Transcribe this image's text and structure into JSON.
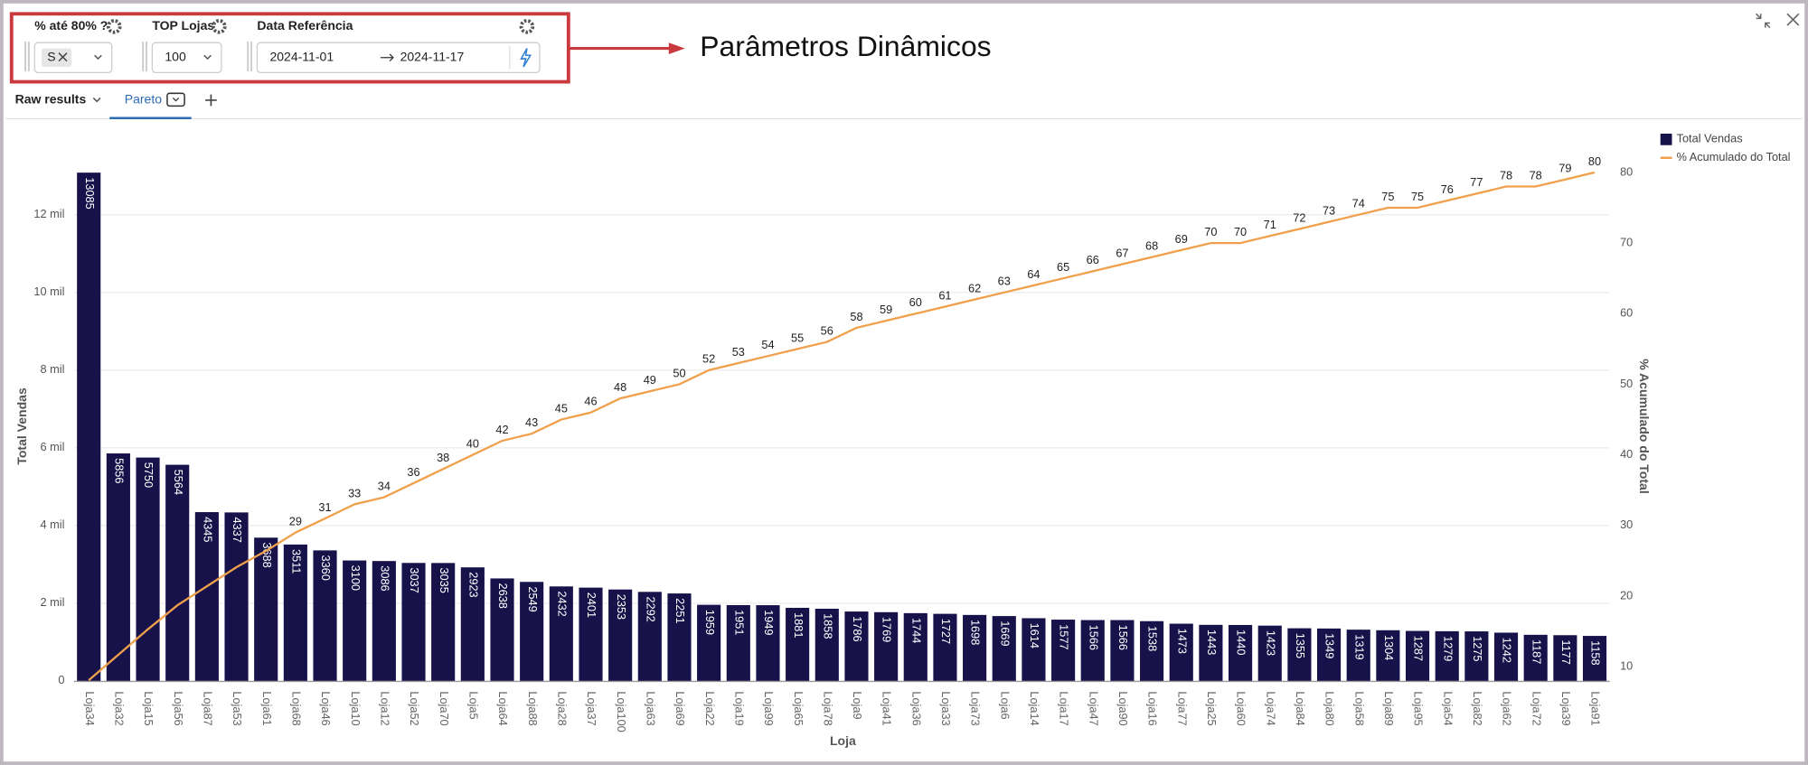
{
  "filters": [
    {
      "label": "% até 80% ?",
      "value": "S"
    },
    {
      "label": "TOP Lojas",
      "value": "100"
    },
    {
      "label": "Data Referência",
      "start": "2024-11-01",
      "end": "2024-11-17"
    }
  ],
  "annotation": "Parâmetros Dinâmicos",
  "tabs": [
    "Raw results",
    "Pareto"
  ],
  "chart_data": {
    "type": "pareto",
    "x_label": "Loja",
    "y_label": "Total Vendas",
    "y2_label": "% Acumulado do Total",
    "categories": [
      "Loja34",
      "Loja32",
      "Loja15",
      "Loja56",
      "Loja87",
      "Loja53",
      "Loja61",
      "Loja68",
      "Loja46",
      "Loja10",
      "Loja12",
      "Loja52",
      "Loja70",
      "Loja5",
      "Loja64",
      "Loja88",
      "Loja28",
      "Loja37",
      "Loja100",
      "Loja63",
      "Loja69",
      "Loja22",
      "Loja19",
      "Loja99",
      "Loja65",
      "Loja78",
      "Loja9",
      "Loja41",
      "Loja36",
      "Loja33",
      "Loja73",
      "Loja6",
      "Loja14",
      "Loja17",
      "Loja47",
      "Loja90",
      "Loja16",
      "Loja77",
      "Loja25",
      "Loja60",
      "Loja74",
      "Loja84",
      "Loja80",
      "Loja58",
      "Loja89",
      "Loja95",
      "Loja54",
      "Loja82",
      "Loja62",
      "Loja72",
      "Loja39",
      "Loja91"
    ],
    "series": [
      {
        "name": "Total Vendas",
        "type": "bar",
        "color": "#17124a",
        "values": [
          13085,
          5856,
          5750,
          5564,
          4345,
          4337,
          3688,
          3511,
          3360,
          3100,
          3086,
          3037,
          3035,
          2923,
          2638,
          2549,
          2432,
          2401,
          2353,
          2292,
          2251,
          1959,
          1951,
          1949,
          1881,
          1858,
          1786,
          1769,
          1744,
          1727,
          1698,
          1669,
          1614,
          1577,
          1566,
          1566,
          1538,
          1473,
          1443,
          1440,
          1423,
          1355,
          1349,
          1319,
          1304,
          1287,
          1279,
          1275,
          1242,
          1187,
          1177,
          1158
        ]
      },
      {
        "name": "% Acumulado do Total",
        "type": "line",
        "color": "#f0a04b",
        "axis": "y2",
        "values": [
          8.1,
          11.7,
          15.3,
          18.7,
          21.4,
          24.1,
          26.4,
          29,
          31,
          33,
          34,
          36,
          38,
          40,
          42,
          43,
          45,
          46,
          48,
          49,
          50,
          52,
          53,
          54,
          55,
          56,
          58,
          59,
          60,
          61,
          62,
          63,
          64,
          65,
          66,
          67,
          68,
          69,
          70,
          70,
          71,
          72,
          73,
          74,
          75,
          75,
          76,
          77,
          78,
          78,
          79,
          80
        ],
        "value_labels": [
          null,
          null,
          null,
          null,
          null,
          null,
          null,
          "29",
          "31",
          "33",
          "34",
          "36",
          "38",
          "40",
          "42",
          "43",
          "45",
          "46",
          "48",
          "49",
          "50",
          "52",
          "53",
          "54",
          "55",
          "56",
          "58",
          "59",
          "60",
          "61",
          "62",
          "63",
          "64",
          "65",
          "66",
          "67",
          "68",
          "69",
          "70",
          "70",
          "71",
          "72",
          "73",
          "74",
          "75",
          "75",
          "76",
          "77",
          "78",
          "78",
          "79",
          "80"
        ]
      }
    ],
    "ylim": [
      0,
      14000
    ],
    "yticks": [
      0,
      {
        "value": 2000,
        "label": "2 mil"
      },
      {
        "value": 4000,
        "label": "4 mil"
      },
      {
        "value": 6000,
        "label": "6 mil"
      },
      {
        "value": 8000,
        "label": "8 mil"
      },
      {
        "value": 10000,
        "label": "10 mil"
      },
      {
        "value": 12000,
        "label": "12 mil"
      }
    ],
    "y2lim": [
      8,
      85
    ],
    "y2ticks": [
      10,
      20,
      30,
      40,
      50,
      60,
      70,
      80
    ],
    "grid": true,
    "legend": "top-right"
  }
}
